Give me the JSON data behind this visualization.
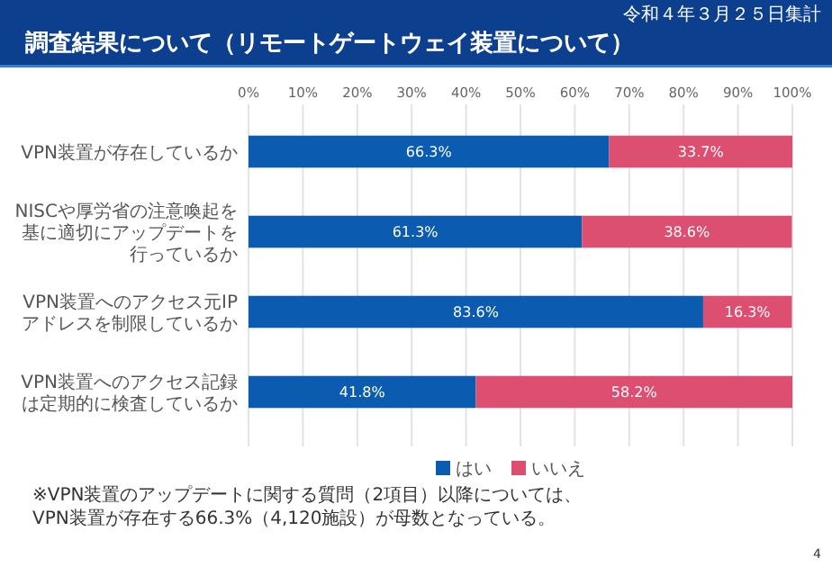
{
  "chart_data": {
    "type": "bar",
    "title": "調査結果について（リモートゲートウェイ装置について）",
    "subtitle": "令和４年３月２５日集計",
    "orientation": "horizontal",
    "stacked": true,
    "categories": [
      "VPN装置が存在しているか",
      "NISCや厚労省の注意喚起を基に適切にアップデートを行っているか",
      "VPN装置へのアクセス元IPアドレスを制限しているか",
      "VPN装置へのアクセス記録は定期的に検査しているか"
    ],
    "series": [
      {
        "name": "はい",
        "color": "#0b5cb0",
        "values": [
          66.3,
          61.3,
          83.6,
          41.8
        ],
        "value_labels": [
          "66.3%",
          "61.3%",
          "83.6%",
          "41.8%"
        ]
      },
      {
        "name": "いいえ",
        "color": "#dc4f70",
        "values": [
          33.7,
          38.6,
          16.3,
          58.2
        ],
        "value_labels": [
          "33.7%",
          "38.6%",
          "16.3%",
          "58.2%"
        ]
      }
    ],
    "xlim": [
      0,
      100
    ],
    "xticks": [
      {
        "value": 0,
        "label": "0%"
      },
      {
        "value": 10,
        "label": "10%"
      },
      {
        "value": 20,
        "label": "20%"
      },
      {
        "value": 30,
        "label": "30%"
      },
      {
        "value": 40,
        "label": "40%"
      },
      {
        "value": 50,
        "label": "50%"
      },
      {
        "value": 60,
        "label": "60%"
      },
      {
        "value": 70,
        "label": "70%"
      },
      {
        "value": 80,
        "label": "80%"
      },
      {
        "value": 90,
        "label": "90%"
      },
      {
        "value": 100,
        "label": "100%"
      }
    ],
    "grid": "x",
    "legend": "bottom",
    "annotations": [
      "※VPN装置のアップデートに関する質問（2項目）以降については、VPN装置が存在する66.3%（4,120施設）が母数となっている。",
      "4"
    ]
  }
}
